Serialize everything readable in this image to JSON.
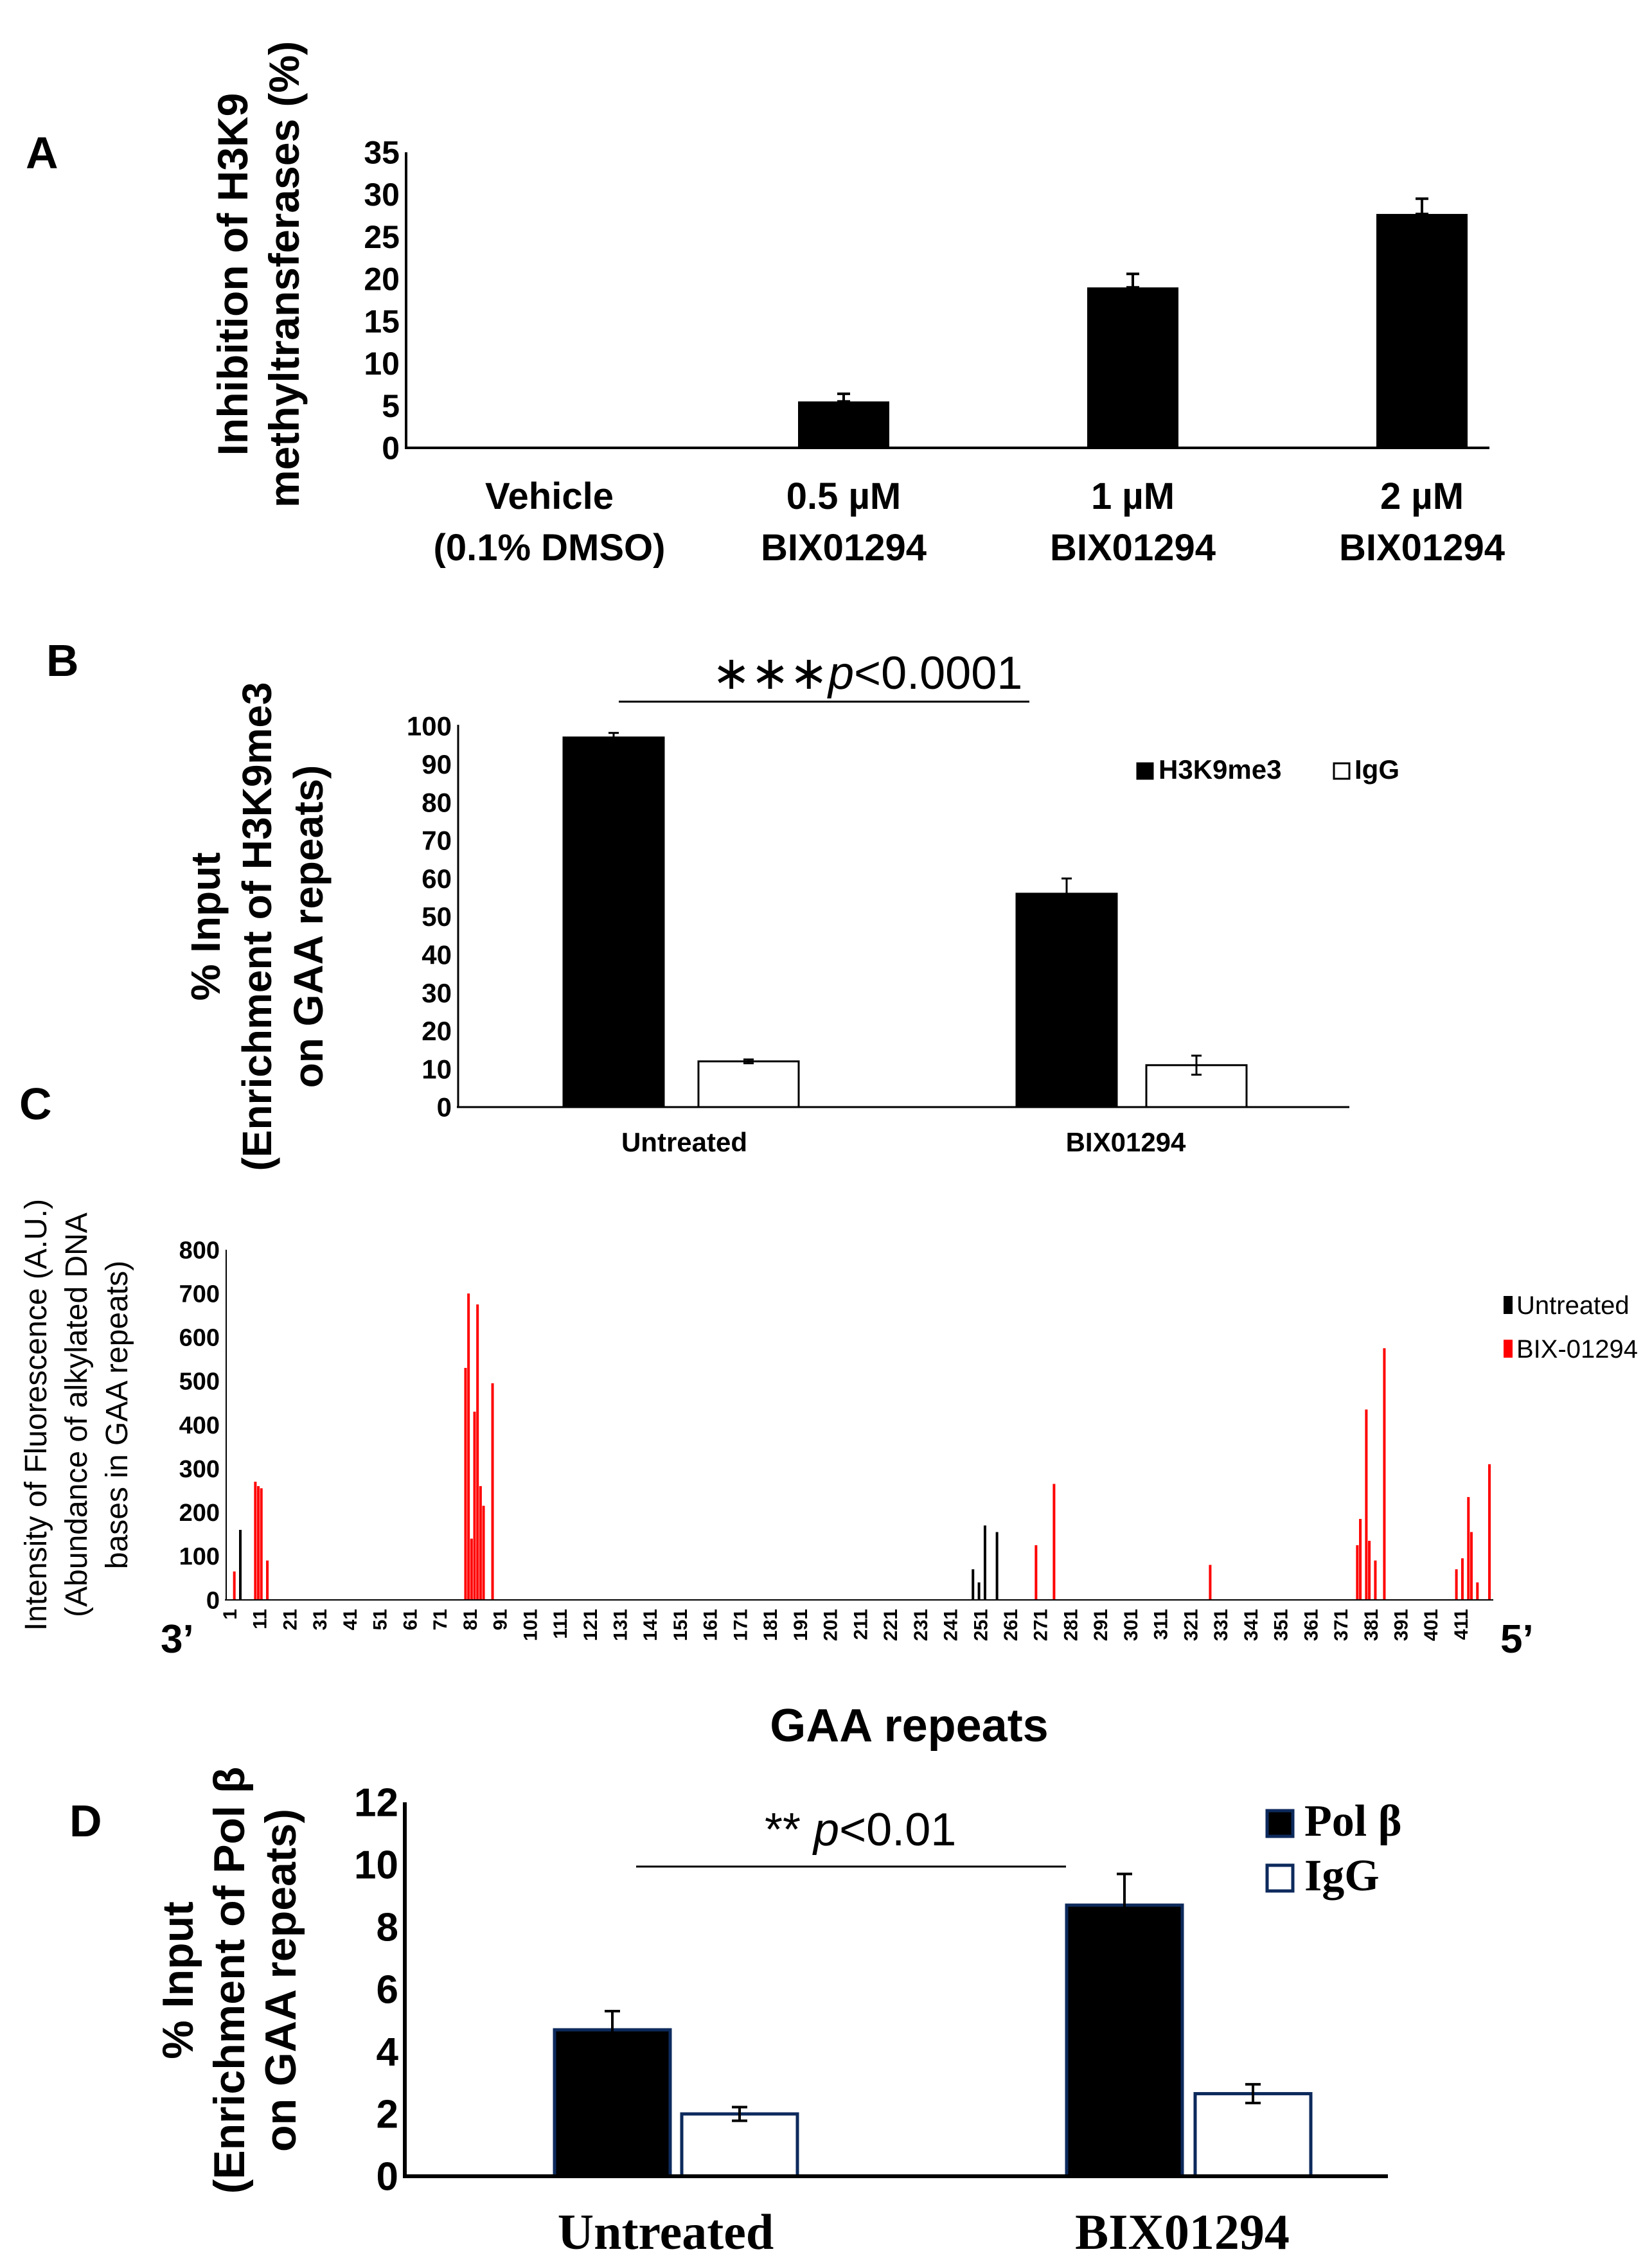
{
  "chart_data": [
    {
      "panel": "A",
      "type": "bar",
      "ylabel_lines": [
        "Inhibition of H3K9",
        "methyltransferases (%)"
      ],
      "categories": [
        [
          "Vehicle",
          "(0.1% DMSO)"
        ],
        [
          "0.5 µM",
          "BIX01294"
        ],
        [
          "1 µM",
          "BIX01294"
        ],
        [
          "2 µM",
          "BIX01294"
        ]
      ],
      "values": [
        0,
        5.5,
        19,
        27.7
      ],
      "errors": [
        0,
        0.9,
        1.6,
        1.8
      ],
      "yticks": [
        0,
        5,
        10,
        15,
        20,
        25,
        30,
        35
      ],
      "ylim": [
        0,
        35
      ]
    },
    {
      "panel": "B",
      "type": "bar",
      "ylabel_lines": [
        "% Input",
        "(Enrichment of H3K9me3",
        "on GAA repeats)"
      ],
      "categories": [
        "Untreated",
        "BIX01294"
      ],
      "series": [
        {
          "name": "H3K9me3",
          "values": [
            97,
            56
          ],
          "errors": [
            1.2,
            4
          ],
          "color": "#000000"
        },
        {
          "name": "IgG",
          "values": [
            12,
            11
          ],
          "errors": [
            0.5,
            2.5
          ],
          "color": "#ffffff"
        }
      ],
      "yticks": [
        0,
        10,
        20,
        30,
        40,
        50,
        60,
        70,
        80,
        90,
        100
      ],
      "ylim": [
        0,
        100
      ],
      "annotation": {
        "stars": "∗∗∗",
        "p": "p",
        "rest": "<0.0001"
      }
    },
    {
      "panel": "C",
      "type": "bar",
      "ylabel_lines": [
        "Intensity of Fluorescence (A.U.)",
        "(Abundance of alkylated DNA",
        "bases in GAA repeats)"
      ],
      "xlabel": "GAA repeats",
      "x_end_left": "3’",
      "x_end_right": "5’",
      "x_range": [
        1,
        420
      ],
      "xticks": [
        1,
        11,
        21,
        31,
        41,
        51,
        61,
        71,
        81,
        91,
        101,
        111,
        121,
        131,
        141,
        151,
        161,
        171,
        181,
        191,
        201,
        211,
        221,
        231,
        241,
        251,
        261,
        271,
        281,
        291,
        301,
        311,
        321,
        331,
        341,
        351,
        361,
        371,
        381,
        391,
        401,
        411
      ],
      "yticks": [
        0,
        100,
        200,
        300,
        400,
        500,
        600,
        700,
        800
      ],
      "ylim": [
        0,
        800
      ],
      "series": [
        {
          "name": "Untreated",
          "color": "#000000",
          "x": [
            4,
            248,
            250,
            252,
            256
          ],
          "values": [
            160,
            70,
            40,
            170,
            155
          ]
        },
        {
          "name": "BIX-01294",
          "color": "#ff0000",
          "x": [
            2,
            9,
            10,
            11,
            13,
            79,
            80,
            81,
            82,
            83,
            84,
            85,
            88,
            269,
            275,
            327,
            376,
            377,
            379,
            380,
            382,
            385,
            409,
            411,
            413,
            414,
            416,
            420
          ],
          "values": [
            65,
            270,
            260,
            255,
            90,
            530,
            700,
            140,
            430,
            675,
            260,
            215,
            495,
            125,
            265,
            80,
            125,
            185,
            435,
            135,
            90,
            575,
            70,
            95,
            235,
            155,
            40,
            310
          ]
        }
      ]
    },
    {
      "panel": "D",
      "type": "bar",
      "ylabel_lines": [
        "% Input",
        "(Enrichment of Pol β",
        "on GAA repeats)"
      ],
      "categories": [
        "Untreated",
        "BIX01294"
      ],
      "series": [
        {
          "name": "Pol β",
          "values": [
            4.7,
            8.7
          ],
          "errors": [
            0.6,
            1.0
          ],
          "color": "#000000"
        },
        {
          "name": "IgG",
          "values": [
            2.0,
            2.65
          ],
          "errors": [
            0.22,
            0.3
          ],
          "color": "#ffffff"
        }
      ],
      "yticks": [
        0,
        2,
        4,
        6,
        8,
        10,
        12
      ],
      "ylim": [
        0,
        12
      ],
      "annotation": {
        "stars": "** ",
        "p": "p",
        "rest": "<0.01"
      }
    }
  ],
  "panel_labels": [
    "A",
    "B",
    "C",
    "D"
  ],
  "colors": {
    "axis": "#000000",
    "bar_dark": "#000000",
    "navy_edge": "#0d2a5c",
    "red": "#ff0000"
  }
}
